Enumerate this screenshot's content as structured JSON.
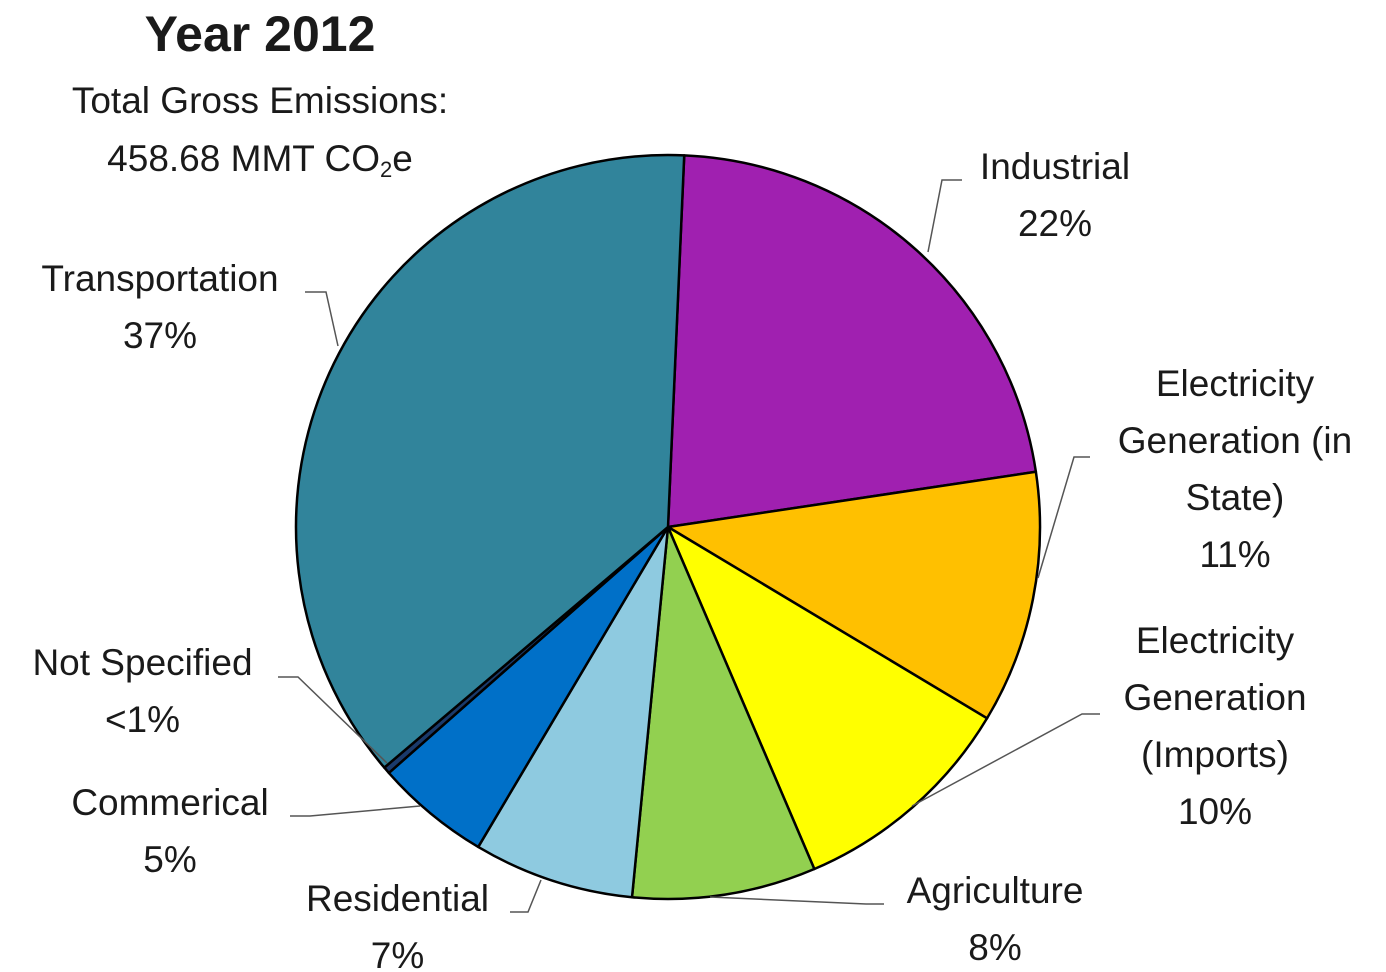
{
  "chart_data": {
    "type": "pie",
    "title": "Year 2012",
    "subtitle": {
      "line1": "Total Gross Emissions:",
      "line2_main": "458.68 MMT CO",
      "line2_sub": "2",
      "line2_tail": "e"
    },
    "slices": [
      {
        "name": "Industrial",
        "value": 22,
        "label_lines": [
          "Industrial"
        ],
        "pct": "22%",
        "color": "#A020B0"
      },
      {
        "name": "Electricity Generation (in State)",
        "value": 11,
        "label_lines": [
          "Electricity",
          "Generation (in",
          "State)"
        ],
        "pct": "11%",
        "color": "#FFC000"
      },
      {
        "name": "Electricity Generation (Imports)",
        "value": 10,
        "label_lines": [
          "Electricity",
          "Generation",
          "(Imports)"
        ],
        "pct": "10%",
        "color": "#FFFF00"
      },
      {
        "name": "Agriculture",
        "value": 8,
        "label_lines": [
          "Agriculture"
        ],
        "pct": "8%",
        "color": "#92D050"
      },
      {
        "name": "Residential",
        "value": 7,
        "label_lines": [
          "Residential"
        ],
        "pct": "7%",
        "color": "#8ECAE0"
      },
      {
        "name": "Commerical",
        "value": 5,
        "label_lines": [
          "Commerical"
        ],
        "pct": "5%",
        "color": "#0070C8"
      },
      {
        "name": "Not Specified",
        "value": 0.3,
        "label_lines": [
          "Not Specified"
        ],
        "pct": "<1%",
        "color": "#1A3A6B"
      },
      {
        "name": "Transportation",
        "value": 37,
        "label_lines": [
          "Transportation"
        ],
        "pct": "37%",
        "color": "#31849B"
      }
    ]
  }
}
